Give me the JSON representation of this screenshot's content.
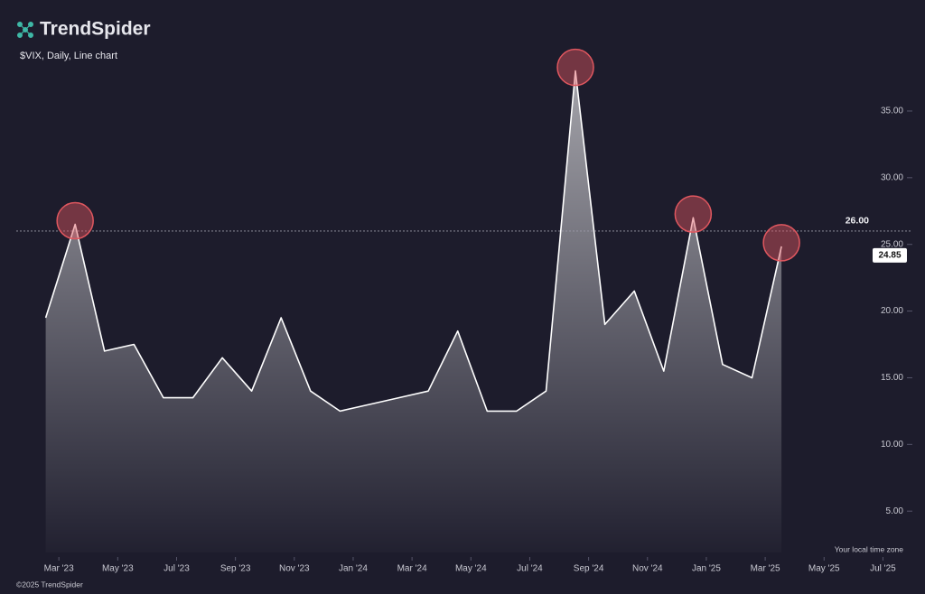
{
  "brand": "TrendSpider",
  "footer": "©2025 TrendSpider",
  "chart_data": {
    "type": "area-line",
    "title": "$VIX, Daily, Line chart",
    "x": [
      "2023-02",
      "2023-03",
      "2023-04",
      "2023-05",
      "2023-06",
      "2023-07",
      "2023-08",
      "2023-09",
      "2023-10",
      "2023-11",
      "2023-12",
      "2024-01",
      "2024-02",
      "2024-03",
      "2024-04",
      "2024-05",
      "2024-06",
      "2024-07",
      "2024-08",
      "2024-09",
      "2024-10",
      "2024-11",
      "2024-12",
      "2025-01",
      "2025-02",
      "2025-03"
    ],
    "values": [
      19.5,
      26.5,
      17,
      17.5,
      13.5,
      13.5,
      16.5,
      14,
      19.5,
      14,
      12.5,
      13,
      13.5,
      14,
      18.5,
      12.5,
      12.5,
      14,
      38,
      19,
      21.5,
      15.5,
      27,
      16,
      15,
      24.85
    ],
    "color": "#ffffff",
    "highlight_color": "#e0575f",
    "xlim": [
      "2023-01",
      "2025-08"
    ],
    "xticks": [
      {
        "value": "2023-03",
        "label": "Mar '23"
      },
      {
        "value": "2023-05",
        "label": "May '23"
      },
      {
        "value": "2023-07",
        "label": "Jul '23"
      },
      {
        "value": "2023-09",
        "label": "Sep '23"
      },
      {
        "value": "2023-11",
        "label": "Nov '23"
      },
      {
        "value": "2024-01",
        "label": "Jan '24"
      },
      {
        "value": "2024-03",
        "label": "Mar '24"
      },
      {
        "value": "2024-05",
        "label": "May '24"
      },
      {
        "value": "2024-07",
        "label": "Jul '24"
      },
      {
        "value": "2024-09",
        "label": "Sep '24"
      },
      {
        "value": "2024-11",
        "label": "Nov '24"
      },
      {
        "value": "2025-01",
        "label": "Jan '25"
      },
      {
        "value": "2025-03",
        "label": "Mar '25"
      },
      {
        "value": "2025-05",
        "label": "May '25"
      },
      {
        "value": "2025-07",
        "label": "Jul '25"
      }
    ],
    "ylim": [
      1.9,
      39.6
    ],
    "yticks": [
      {
        "value": 5,
        "label": "5.00"
      },
      {
        "value": 10,
        "label": "10.00"
      },
      {
        "value": 15,
        "label": "15.00"
      },
      {
        "value": 20,
        "label": "20.00"
      },
      {
        "value": 25,
        "label": "25.00"
      },
      {
        "value": 30,
        "label": "30.00"
      },
      {
        "value": 35,
        "label": "35.00"
      }
    ],
    "reference_line": {
      "value": 26,
      "label": "26.00"
    },
    "time_zone_note": "Your local time zone"
  }
}
